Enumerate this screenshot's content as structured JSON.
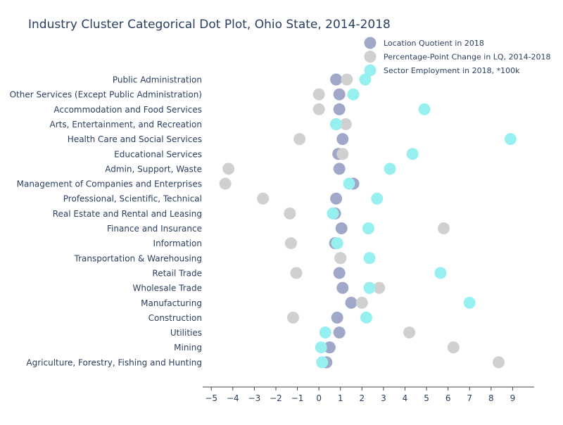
{
  "chart_data": {
    "type": "scatter",
    "title": "Industry Cluster Categorical Dot Plot, Ohio State, 2014-2018",
    "xlabel": "",
    "ylabel": "",
    "xlim": [
      -5.4,
      10
    ],
    "xticks": [
      -5,
      -4,
      -3,
      -2,
      -1,
      0,
      1,
      2,
      3,
      4,
      5,
      6,
      7,
      8,
      9
    ],
    "xtick_labels": [
      "−5",
      "−4",
      "−3",
      "−2",
      "−1",
      "0",
      "1",
      "2",
      "3",
      "4",
      "5",
      "6",
      "7",
      "8",
      "9"
    ],
    "grid": false,
    "legend_position": "top-right",
    "categories": [
      "Public Administration",
      "Other Services (Except Public Administration)",
      "Accommodation and Food Services",
      "Arts, Entertainment, and Recreation",
      "Health Care and Social Services",
      "Educational Services",
      "Admin, Support, Waste",
      "Management of Companies and Enterprises",
      "Professional, Scientific, Technical",
      "Real Estate and Rental and Leasing",
      "Finance and Insurance",
      "Information",
      "Transportation & Warehousing",
      "Retail Trade",
      "Wholesale Trade",
      "Manufacturing",
      "Construction",
      "Utilities",
      "Mining",
      "Agriculture, Forestry, Fishing and Hunting"
    ],
    "series": [
      {
        "name": "Location Quotient in 2018",
        "color": "#9fa8c8",
        "values": [
          0.8,
          0.95,
          0.95,
          0.8,
          1.1,
          0.9,
          0.95,
          1.6,
          0.8,
          0.75,
          1.05,
          0.75,
          1.0,
          0.95,
          1.1,
          1.5,
          0.85,
          0.95,
          0.5,
          0.35
        ]
      },
      {
        "name": "Percentage-Point Change in LQ, 2014-2018",
        "color": "#d0d0d0",
        "values": [
          1.3,
          0.0,
          0.0,
          1.25,
          -0.9,
          1.1,
          -4.2,
          -4.35,
          -2.6,
          -1.35,
          5.8,
          -1.3,
          1.0,
          -1.05,
          2.8,
          2.0,
          -1.2,
          4.2,
          6.25,
          8.35
        ]
      },
      {
        "name": "Sector Employment in 2018, *100k",
        "color": "#97f0f0",
        "values": [
          2.15,
          1.6,
          4.9,
          0.8,
          8.9,
          4.35,
          3.3,
          1.4,
          2.7,
          0.65,
          2.3,
          0.85,
          2.35,
          5.65,
          2.35,
          7.0,
          2.2,
          0.3,
          0.1,
          0.15
        ]
      }
    ]
  }
}
